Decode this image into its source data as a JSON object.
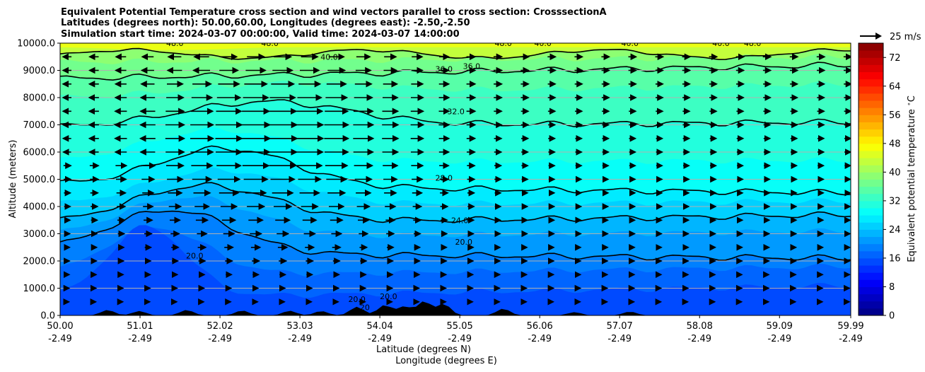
{
  "title_lines": [
    "Equivalent Potential Temperature cross section and wind vectors parallel to cross section: CrosssectionA",
    "Latitudes (degrees north): 50.00,60.00, Longitudes (degrees east): -2.50,-2.50",
    "Simulation start time: 2024-03-07 00:00:00, Valid time: 2024-03-07 14:00:00"
  ],
  "quiver_key_label": "25 m/s",
  "chart_data": {
    "type": "heatmap",
    "ylabel": "Altitude (meters)",
    "xlabel_lines": [
      "Latitude (degrees N)",
      "Longitude (degrees E)"
    ],
    "colorbar_label": "Equivalent potential temperature $^\\circ$C",
    "x_range": [
      50.0,
      59.99
    ],
    "ylim": [
      0,
      10000
    ],
    "grid": "horizontal",
    "y_ticks": [
      0,
      1000,
      2000,
      3000,
      4000,
      5000,
      6000,
      7000,
      8000,
      9000,
      10000
    ],
    "y_tick_labels": [
      "0.0",
      "1000.0",
      "2000.0",
      "3000.0",
      "4000.0",
      "5000.0",
      "6000.0",
      "7000.0",
      "8000.0",
      "9000.0",
      "10000.0"
    ],
    "x_ticks": [
      {
        "lat": "50.00",
        "lon": "-2.49"
      },
      {
        "lat": "51.01",
        "lon": "-2.49"
      },
      {
        "lat": "52.02",
        "lon": "-2.49"
      },
      {
        "lat": "53.03",
        "lon": "-2.49"
      },
      {
        "lat": "54.04",
        "lon": "-2.49"
      },
      {
        "lat": "55.05",
        "lon": "-2.49"
      },
      {
        "lat": "56.06",
        "lon": "-2.49"
      },
      {
        "lat": "57.07",
        "lon": "-2.49"
      },
      {
        "lat": "58.08",
        "lon": "-2.49"
      },
      {
        "lat": "59.09",
        "lon": "-2.49"
      },
      {
        "lat": "59.99",
        "lon": "-2.49"
      }
    ],
    "colorbar_range": [
      0,
      76
    ],
    "colorbar_ticks": [
      0,
      8,
      16,
      24,
      32,
      40,
      48,
      56,
      64,
      72
    ],
    "contour_levels": [
      20.0,
      24.0,
      28.0,
      32.0,
      36.0,
      40.0,
      48.0
    ],
    "contour_labels": [
      {
        "text": "48.0",
        "x": 51.45,
        "alt": 10000
      },
      {
        "text": "48.0",
        "x": 52.65,
        "alt": 10000
      },
      {
        "text": "40.0",
        "x": 53.4,
        "alt": 9500
      },
      {
        "text": "36.0",
        "x": 54.85,
        "alt": 9050
      },
      {
        "text": "36.0",
        "x": 55.2,
        "alt": 9150
      },
      {
        "text": "48.0",
        "x": 55.6,
        "alt": 10000
      },
      {
        "text": "40.0",
        "x": 56.1,
        "alt": 10000
      },
      {
        "text": "40.0",
        "x": 57.2,
        "alt": 10000
      },
      {
        "text": "40.0",
        "x": 58.35,
        "alt": 10000
      },
      {
        "text": "48.0",
        "x": 58.75,
        "alt": 10000
      },
      {
        "text": "32.0",
        "x": 55.0,
        "alt": 7500
      },
      {
        "text": "28.0",
        "x": 54.85,
        "alt": 5050
      },
      {
        "text": "24.0",
        "x": 55.05,
        "alt": 3500
      },
      {
        "text": "20.0",
        "x": 55.1,
        "alt": 2700
      },
      {
        "text": "20.0",
        "x": 51.7,
        "alt": 2200
      },
      {
        "text": "20.0",
        "x": 53.75,
        "alt": 600
      },
      {
        "text": "20.0",
        "x": 54.15,
        "alt": 700
      },
      {
        "text": "20",
        "x": 53.85,
        "alt": 300
      }
    ],
    "terrain_peaks": [
      {
        "x": 50.6,
        "h": 200
      },
      {
        "x": 51.0,
        "h": 160
      },
      {
        "x": 51.6,
        "h": 200
      },
      {
        "x": 52.3,
        "h": 180
      },
      {
        "x": 52.9,
        "h": 170
      },
      {
        "x": 53.3,
        "h": 160
      },
      {
        "x": 53.75,
        "h": 320
      },
      {
        "x": 54.1,
        "h": 380
      },
      {
        "x": 54.35,
        "h": 330
      },
      {
        "x": 54.6,
        "h": 520
      },
      {
        "x": 54.85,
        "h": 420
      },
      {
        "x": 55.6,
        "h": 250
      },
      {
        "x": 56.5,
        "h": 120
      },
      {
        "x": 57.2,
        "h": 140
      }
    ],
    "wind_vectors": {
      "row_alts": [
        9500,
        9000,
        8500,
        8000,
        7500,
        7000,
        6500,
        6000,
        5500,
        5000,
        4500,
        4000,
        3500,
        3000,
        2500,
        2000,
        1500,
        1000,
        500
      ],
      "column_lats": [
        50.0,
        50.34,
        50.68,
        51.02,
        51.36,
        51.7,
        52.04,
        52.38,
        52.72,
        53.06,
        53.4,
        53.74,
        54.08,
        54.42,
        54.76,
        55.1,
        55.44,
        55.78,
        56.12,
        56.46,
        56.8,
        57.14,
        57.48,
        57.82,
        58.16,
        58.5,
        58.84,
        59.18,
        59.52,
        59.86
      ]
    }
  }
}
